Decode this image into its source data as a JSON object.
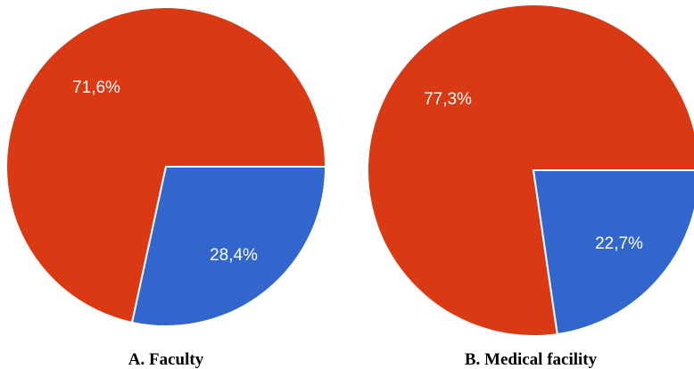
{
  "chart_data": [
    {
      "type": "pie",
      "title": "A. Faculty",
      "slices": [
        {
          "label": "71,6%",
          "value": 71.6,
          "color": "#d93a14"
        },
        {
          "label": "28,4%",
          "value": 28.4,
          "color": "#3366cc"
        }
      ]
    },
    {
      "type": "pie",
      "title": "B. Medical facility",
      "slices": [
        {
          "label": "77,3%",
          "value": 77.3,
          "color": "#d93a14"
        },
        {
          "label": "22,7%",
          "value": 22.7,
          "color": "#3366cc"
        }
      ]
    }
  ]
}
